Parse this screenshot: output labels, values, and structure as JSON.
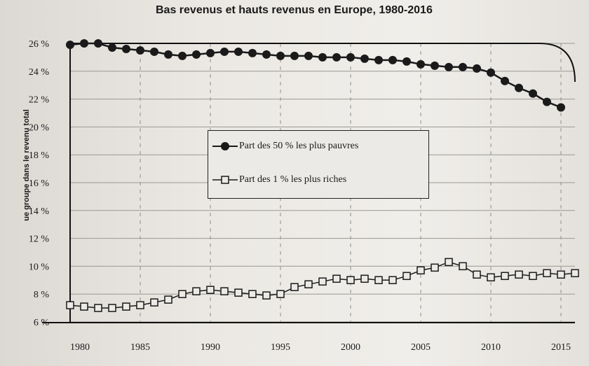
{
  "chart_data": {
    "type": "line",
    "title": "Bas revenus et hauts revenus en Europe, 1980-2016",
    "ylabel": "ue groupe dans le revenu total",
    "xlabel": "",
    "xlim": [
      1980,
      2016
    ],
    "ylim": [
      6,
      26
    ],
    "x_ticks": [
      {
        "value": 1980,
        "label": "1980"
      },
      {
        "value": 1985,
        "label": "1985"
      },
      {
        "value": 1990,
        "label": "1990"
      },
      {
        "value": 1995,
        "label": "1995"
      },
      {
        "value": 2000,
        "label": "2000"
      },
      {
        "value": 2005,
        "label": "2005"
      },
      {
        "value": 2010,
        "label": "2010"
      },
      {
        "value": 2015,
        "label": "2015"
      }
    ],
    "y_ticks": [
      {
        "value": 6,
        "label": "6 %"
      },
      {
        "value": 8,
        "label": "8 %"
      },
      {
        "value": 10,
        "label": "10 %"
      },
      {
        "value": 12,
        "label": "12 %"
      },
      {
        "value": 14,
        "label": "14 %"
      },
      {
        "value": 16,
        "label": "16 %"
      },
      {
        "value": 18,
        "label": "18 %"
      },
      {
        "value": 20,
        "label": "20 %"
      },
      {
        "value": 22,
        "label": "22 %"
      },
      {
        "value": 24,
        "label": "24 %"
      },
      {
        "value": 26,
        "label": "26 %"
      }
    ],
    "grid": true,
    "legend_position": "center-left",
    "series": [
      {
        "name": "Part des 50 % les plus pauvres",
        "marker": "filled-circle",
        "color": "#1a1a1a",
        "points": [
          [
            1980,
            25.9
          ],
          [
            1981,
            26.0
          ],
          [
            1982,
            26.0
          ],
          [
            1983,
            25.7
          ],
          [
            1984,
            25.6
          ],
          [
            1985,
            25.5
          ],
          [
            1986,
            25.4
          ],
          [
            1987,
            25.2
          ],
          [
            1988,
            25.1
          ],
          [
            1989,
            25.2
          ],
          [
            1990,
            25.3
          ],
          [
            1991,
            25.4
          ],
          [
            1992,
            25.4
          ],
          [
            1993,
            25.3
          ],
          [
            1994,
            25.2
          ],
          [
            1995,
            25.1
          ],
          [
            1996,
            25.1
          ],
          [
            1997,
            25.1
          ],
          [
            1998,
            25.0
          ],
          [
            1999,
            25.0
          ],
          [
            2000,
            25.0
          ],
          [
            2001,
            24.9
          ],
          [
            2002,
            24.8
          ],
          [
            2003,
            24.8
          ],
          [
            2004,
            24.7
          ],
          [
            2005,
            24.5
          ],
          [
            2006,
            24.4
          ],
          [
            2007,
            24.3
          ],
          [
            2008,
            24.3
          ],
          [
            2009,
            24.2
          ],
          [
            2010,
            23.9
          ],
          [
            2011,
            23.3
          ],
          [
            2012,
            22.8
          ],
          [
            2013,
            22.4
          ],
          [
            2014,
            21.8
          ],
          [
            2015,
            21.4
          ]
        ]
      },
      {
        "name": "Part des 1 % les plus riches",
        "marker": "open-square",
        "color": "#1a1a1a",
        "points": [
          [
            1980,
            7.2
          ],
          [
            1981,
            7.1
          ],
          [
            1982,
            7.0
          ],
          [
            1983,
            7.0
          ],
          [
            1984,
            7.1
          ],
          [
            1985,
            7.2
          ],
          [
            1986,
            7.4
          ],
          [
            1987,
            7.6
          ],
          [
            1988,
            8.0
          ],
          [
            1989,
            8.2
          ],
          [
            1990,
            8.3
          ],
          [
            1991,
            8.2
          ],
          [
            1992,
            8.1
          ],
          [
            1993,
            8.0
          ],
          [
            1994,
            7.9
          ],
          [
            1995,
            8.0
          ],
          [
            1996,
            8.5
          ],
          [
            1997,
            8.7
          ],
          [
            1998,
            8.9
          ],
          [
            1999,
            9.1
          ],
          [
            2000,
            9.0
          ],
          [
            2001,
            9.1
          ],
          [
            2002,
            9.0
          ],
          [
            2003,
            9.0
          ],
          [
            2004,
            9.3
          ],
          [
            2005,
            9.7
          ],
          [
            2006,
            9.9
          ],
          [
            2007,
            10.3
          ],
          [
            2008,
            10.0
          ],
          [
            2009,
            9.4
          ],
          [
            2010,
            9.2
          ],
          [
            2011,
            9.3
          ],
          [
            2012,
            9.4
          ],
          [
            2013,
            9.3
          ],
          [
            2014,
            9.5
          ],
          [
            2015,
            9.4
          ],
          [
            2016,
            9.5
          ]
        ]
      }
    ]
  }
}
